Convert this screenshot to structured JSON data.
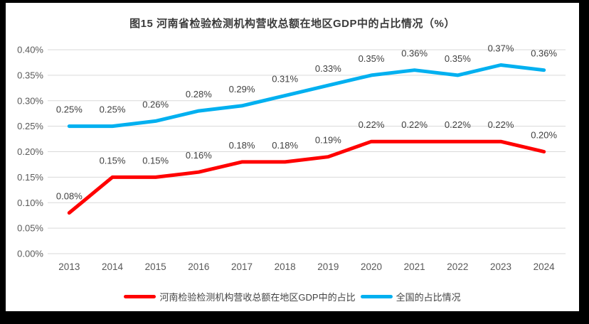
{
  "title": "图15  河南省检验检测机构营收总额在地区GDP中的占比情况（%）",
  "chart_data": {
    "type": "line",
    "categories": [
      "2013",
      "2014",
      "2015",
      "2016",
      "2017",
      "2018",
      "2019",
      "2020",
      "2021",
      "2022",
      "2023",
      "2024"
    ],
    "series": [
      {
        "name": "河南检验检测机构营收总额在地区GDP中的占比",
        "key": "henan",
        "color": "#FF0000",
        "values": [
          0.08,
          0.15,
          0.15,
          0.16,
          0.18,
          0.18,
          0.19,
          0.22,
          0.22,
          0.22,
          0.22,
          0.2
        ],
        "point_labels": [
          "0.08%",
          "0.15%",
          "0.15%",
          "0.16%",
          "0.18%",
          "0.18%",
          "0.19%",
          "0.22%",
          "0.22%",
          "0.22%",
          "0.22%",
          "0.20%"
        ]
      },
      {
        "name": "全国的占比情况",
        "key": "national",
        "color": "#00B0F0",
        "values": [
          0.25,
          0.25,
          0.26,
          0.28,
          0.29,
          0.31,
          0.33,
          0.35,
          0.36,
          0.35,
          0.37,
          0.36
        ],
        "point_labels": [
          "0.25%",
          "0.25%",
          "0.26%",
          "0.28%",
          "0.29%",
          "0.31%",
          "0.33%",
          "0.35%",
          "0.36%",
          "0.35%",
          "0.37%",
          "0.36%"
        ]
      }
    ],
    "y_axis": {
      "min": 0,
      "max": 0.4,
      "step": 0.05,
      "tick_labels": [
        "0.00%",
        "0.05%",
        "0.10%",
        "0.15%",
        "0.20%",
        "0.25%",
        "0.30%",
        "0.35%",
        "0.40%"
      ]
    },
    "xlabel": "",
    "ylabel": "",
    "grid": true,
    "legend_position": "bottom",
    "colors": {
      "gridline": "#D9D9D9",
      "axis_text": "#595959",
      "data_label": "#404040",
      "title_text": "#3B3B3B",
      "chart_bg": "#FFFFFF",
      "frame_bg": "#000000"
    }
  }
}
